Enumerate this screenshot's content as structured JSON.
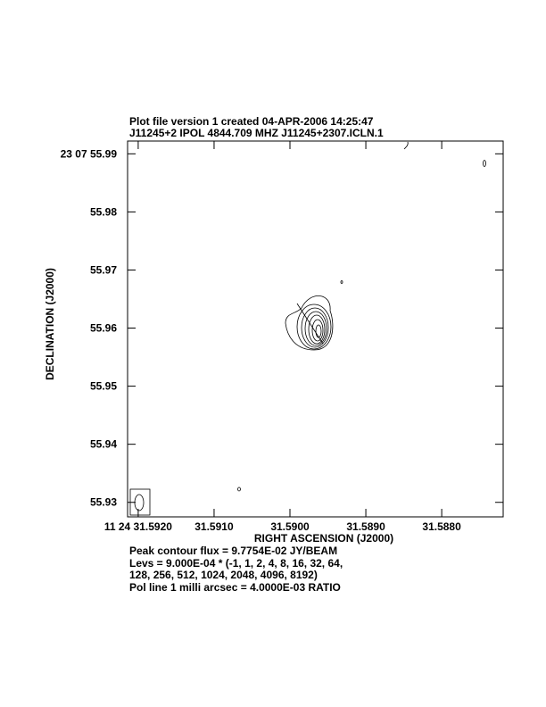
{
  "chart_data": {
    "type": "contour",
    "title": "Plot file version 1  created 04-APR-2006 14:25:47",
    "subtitle": "J11245+2  IPOL  4844.709 MHZ  J11245+2307.ICLN.1",
    "xlabel": "RIGHT ASCENSION (J2000)",
    "ylabel": "DECLINATION (J2000)",
    "xlim": [
      31.59214,
      31.58719
    ],
    "ylim": [
      55.9275,
      55.9922
    ],
    "xticks": [
      {
        "value": 31.592,
        "label": "11 24 31.5920"
      },
      {
        "value": 31.591,
        "label": "31.5910"
      },
      {
        "value": 31.59,
        "label": "31.5900"
      },
      {
        "value": 31.589,
        "label": "31.5890"
      },
      {
        "value": 31.588,
        "label": "31.5880"
      }
    ],
    "yticks": [
      {
        "value": 55.99,
        "label": "23 07 55.99"
      },
      55.98,
      55.97,
      55.96,
      55.95,
      55.94,
      55.93
    ],
    "annotations": [
      "Peak contour flux =  9.7754E-02 JY/BEAM",
      "Levs = 9.000E-04 * (-1, 1, 2, 4, 8, 16, 32, 64,",
      "128, 256, 512, 1024, 2048, 4096, 8192)",
      "Pol line 1 milli arcsec =  4.0000E-03 RATIO"
    ]
  }
}
